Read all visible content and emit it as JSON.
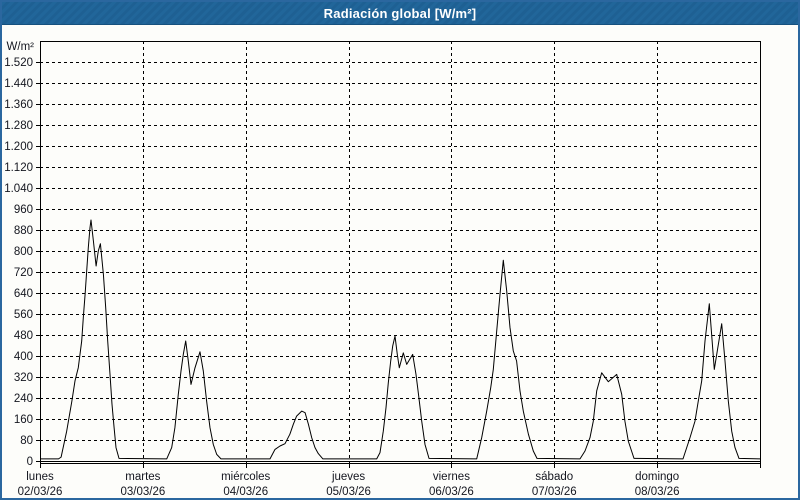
{
  "window": {
    "title": "Radiación global [W/m²]",
    "accent_color": "#1f6396",
    "border_color": "#2b679f",
    "background_color": "#fdfdfa"
  },
  "chart_data": {
    "type": "line",
    "title": "Radiación global [W/m²]",
    "ylabel": "W/m²",
    "xlabel": "",
    "ylim": [
      0,
      1600
    ],
    "ytick_step": 80,
    "grid": "dashed",
    "legend_position": "none",
    "line_color": "#000000",
    "grid_color": "#000000",
    "text_color": "#14161f",
    "yticks": [
      {
        "v": 0,
        "label": "0"
      },
      {
        "v": 80,
        "label": "80"
      },
      {
        "v": 160,
        "label": "160"
      },
      {
        "v": 240,
        "label": "240"
      },
      {
        "v": 320,
        "label": "320"
      },
      {
        "v": 400,
        "label": "400"
      },
      {
        "v": 480,
        "label": "480"
      },
      {
        "v": 560,
        "label": "560"
      },
      {
        "v": 640,
        "label": "640"
      },
      {
        "v": 720,
        "label": "720"
      },
      {
        "v": 800,
        "label": "800"
      },
      {
        "v": 880,
        "label": "880"
      },
      {
        "v": 960,
        "label": "960"
      },
      {
        "v": 1040,
        "label": "1.040"
      },
      {
        "v": 1120,
        "label": "1.120"
      },
      {
        "v": 1200,
        "label": "1.200"
      },
      {
        "v": 1280,
        "label": "1.280"
      },
      {
        "v": 1360,
        "label": "1.360"
      },
      {
        "v": 1440,
        "label": "1.440"
      },
      {
        "v": 1520,
        "label": "1.520"
      }
    ],
    "days": [
      {
        "weekday": "lunes",
        "date": "02/03/26"
      },
      {
        "weekday": "martes",
        "date": "03/03/26"
      },
      {
        "weekday": "miércoles",
        "date": "04/03/26"
      },
      {
        "weekday": "jueves",
        "date": "05/03/26"
      },
      {
        "weekday": "viernes",
        "date": "06/03/26"
      },
      {
        "weekday": "sábado",
        "date": "07/03/26"
      },
      {
        "weekday": "domingo",
        "date": "08/03/26"
      }
    ],
    "series": [
      {
        "name": "Radiación global",
        "unit": "W/m²",
        "daily_peaks": [
          918,
          457,
          190,
          476,
          765,
          336,
          599
        ],
        "points": [
          [
            0.0,
            8
          ],
          [
            0.18,
            8
          ],
          [
            0.205,
            15
          ],
          [
            0.26,
            114
          ],
          [
            0.31,
            229
          ],
          [
            0.34,
            305
          ],
          [
            0.372,
            356
          ],
          [
            0.405,
            457
          ],
          [
            0.421,
            546
          ],
          [
            0.438,
            635
          ],
          [
            0.454,
            724
          ],
          [
            0.47,
            813
          ],
          [
            0.486,
            889
          ],
          [
            0.496,
            918
          ],
          [
            0.519,
            838
          ],
          [
            0.545,
            743
          ],
          [
            0.567,
            800
          ],
          [
            0.587,
            828
          ],
          [
            0.616,
            711
          ],
          [
            0.639,
            584
          ],
          [
            0.658,
            457
          ],
          [
            0.681,
            330
          ],
          [
            0.7,
            216
          ],
          [
            0.72,
            127
          ],
          [
            0.739,
            51
          ],
          [
            0.768,
            10
          ],
          [
            1.232,
            8
          ],
          [
            1.28,
            51
          ],
          [
            1.312,
            127
          ],
          [
            1.345,
            254
          ],
          [
            1.371,
            343
          ],
          [
            1.393,
            406
          ],
          [
            1.417,
            457
          ],
          [
            1.442,
            381
          ],
          [
            1.468,
            292
          ],
          [
            1.507,
            355
          ],
          [
            1.556,
            416
          ],
          [
            1.588,
            343
          ],
          [
            1.62,
            229
          ],
          [
            1.653,
            127
          ],
          [
            1.685,
            63
          ],
          [
            1.718,
            25
          ],
          [
            1.76,
            8
          ],
          [
            2.236,
            8
          ],
          [
            2.285,
            44
          ],
          [
            2.333,
            57
          ],
          [
            2.382,
            66
          ],
          [
            2.43,
            102
          ],
          [
            2.463,
            140
          ],
          [
            2.495,
            171
          ],
          [
            2.544,
            190
          ],
          [
            2.577,
            184
          ],
          [
            2.609,
            140
          ],
          [
            2.642,
            89
          ],
          [
            2.674,
            51
          ],
          [
            2.706,
            28
          ],
          [
            2.75,
            8
          ],
          [
            3.273,
            8
          ],
          [
            3.306,
            32
          ],
          [
            3.338,
            114
          ],
          [
            3.364,
            203
          ],
          [
            3.386,
            298
          ],
          [
            3.41,
            381
          ],
          [
            3.429,
            438
          ],
          [
            3.451,
            476
          ],
          [
            3.474,
            406
          ],
          [
            3.493,
            355
          ],
          [
            3.532,
            412
          ],
          [
            3.565,
            368
          ],
          [
            3.623,
            406
          ],
          [
            3.656,
            330
          ],
          [
            3.678,
            260
          ],
          [
            3.711,
            152
          ],
          [
            3.743,
            63
          ],
          [
            3.782,
            10
          ],
          [
            4.246,
            8
          ],
          [
            4.294,
            89
          ],
          [
            4.343,
            190
          ],
          [
            4.382,
            279
          ],
          [
            4.407,
            349
          ],
          [
            4.44,
            495
          ],
          [
            4.472,
            635
          ],
          [
            4.504,
            765
          ],
          [
            4.537,
            648
          ],
          [
            4.569,
            508
          ],
          [
            4.602,
            419
          ],
          [
            4.634,
            381
          ],
          [
            4.667,
            267
          ],
          [
            4.699,
            190
          ],
          [
            4.748,
            102
          ],
          [
            4.796,
            38
          ],
          [
            4.832,
            10
          ],
          [
            5.25,
            8
          ],
          [
            5.299,
            38
          ],
          [
            5.347,
            89
          ],
          [
            5.379,
            152
          ],
          [
            5.412,
            267
          ],
          [
            5.461,
            336
          ],
          [
            5.525,
            302
          ],
          [
            5.607,
            330
          ],
          [
            5.655,
            254
          ],
          [
            5.687,
            152
          ],
          [
            5.72,
            76
          ],
          [
            5.775,
            10
          ],
          [
            6.251,
            8
          ],
          [
            6.319,
            89
          ],
          [
            6.368,
            152
          ],
          [
            6.4,
            229
          ],
          [
            6.433,
            305
          ],
          [
            6.465,
            457
          ],
          [
            6.507,
            599
          ],
          [
            6.556,
            349
          ],
          [
            6.628,
            523
          ],
          [
            6.66,
            381
          ],
          [
            6.692,
            229
          ],
          [
            6.725,
            114
          ],
          [
            6.757,
            51
          ],
          [
            6.796,
            10
          ],
          [
            7.0,
            8
          ]
        ]
      }
    ]
  }
}
